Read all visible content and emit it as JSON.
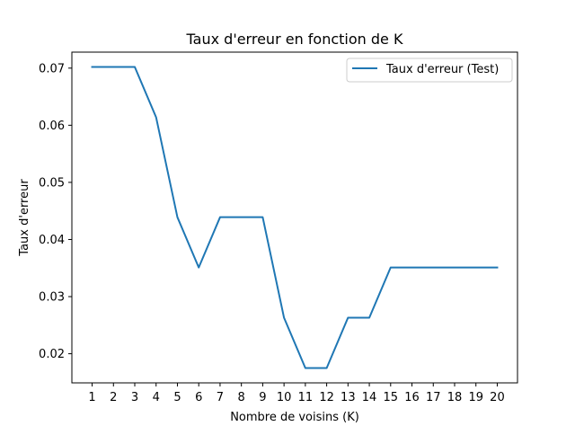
{
  "chart_data": {
    "type": "line",
    "title": "Taux d'erreur en fonction de K",
    "xlabel": "Nombre de voisins (K)",
    "ylabel": "Taux d'erreur",
    "x": [
      1,
      2,
      3,
      4,
      5,
      6,
      7,
      8,
      9,
      10,
      11,
      12,
      13,
      14,
      15,
      16,
      17,
      18,
      19,
      20
    ],
    "x_tick_labels": [
      "1",
      "2",
      "3",
      "4",
      "5",
      "6",
      "7",
      "8",
      "9",
      "10",
      "11",
      "12",
      "13",
      "14",
      "15",
      "16",
      "17",
      "18",
      "19",
      "20"
    ],
    "y_ticks": [
      0.02,
      0.03,
      0.04,
      0.05,
      0.06,
      0.07
    ],
    "y_tick_labels": [
      "0.02",
      "0.03",
      "0.04",
      "0.05",
      "0.06",
      "0.07"
    ],
    "xlim": [
      0.05,
      20.95
    ],
    "ylim": [
      0.0149,
      0.0728
    ],
    "grid": false,
    "legend_position": "top-right",
    "series": [
      {
        "name": "Taux d'erreur (Test)",
        "color": "#1f77b4",
        "values": [
          0.0702,
          0.0702,
          0.0702,
          0.0614,
          0.0439,
          0.0351,
          0.0439,
          0.0439,
          0.0439,
          0.0263,
          0.0175,
          0.0175,
          0.0263,
          0.0263,
          0.0351,
          0.0351,
          0.0351,
          0.0351,
          0.0351,
          0.0351
        ]
      }
    ]
  }
}
